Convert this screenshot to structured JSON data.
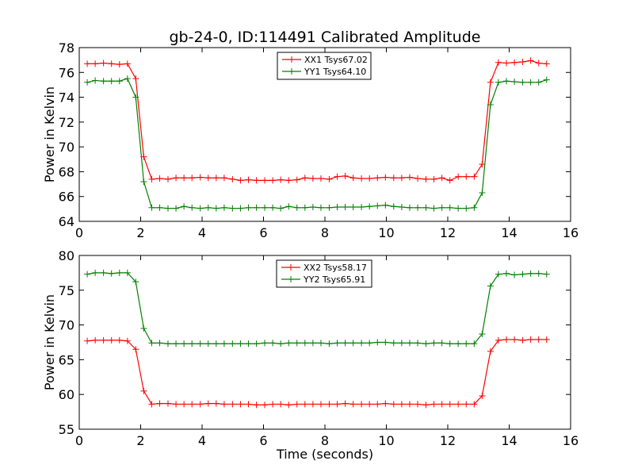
{
  "figure": {
    "title": "gb-24-0, ID:114491 Calibrated Amplitude"
  },
  "chart_data": [
    {
      "type": "line",
      "title": "gb-24-0, ID:114491 Calibrated Amplitude",
      "xlabel": "",
      "ylabel": "Power in Kelvin",
      "xlim": [
        0,
        16
      ],
      "ylim": [
        64,
        78
      ],
      "xticks": [
        "0",
        "2",
        "4",
        "6",
        "8",
        "10",
        "12",
        "14",
        "16"
      ],
      "yticks": [
        "64",
        "66",
        "68",
        "70",
        "72",
        "74",
        "76",
        "78"
      ],
      "grid": false,
      "legend_position": "top-center",
      "x": [
        0.26,
        0.52,
        0.79,
        1.05,
        1.31,
        1.57,
        1.84,
        2.1,
        2.36,
        2.62,
        2.89,
        3.15,
        3.41,
        3.67,
        3.94,
        4.2,
        4.46,
        4.72,
        4.99,
        5.25,
        5.51,
        5.77,
        6.04,
        6.3,
        6.56,
        6.82,
        7.09,
        7.35,
        7.61,
        7.87,
        8.14,
        8.4,
        8.66,
        8.92,
        9.19,
        9.45,
        9.71,
        9.97,
        10.24,
        10.5,
        10.76,
        11.02,
        11.29,
        11.55,
        11.81,
        12.07,
        12.34,
        12.6,
        12.86,
        13.12,
        13.39,
        13.65,
        13.91,
        14.17,
        14.44,
        14.7,
        14.96,
        15.22
      ],
      "series": [
        {
          "name": "XX1 Tsys67.02",
          "color": "#ff0000",
          "values": [
            76.7,
            76.7,
            76.75,
            76.7,
            76.65,
            76.7,
            75.5,
            69.2,
            67.4,
            67.45,
            67.4,
            67.5,
            67.5,
            67.5,
            67.55,
            67.5,
            67.5,
            67.5,
            67.4,
            67.3,
            67.35,
            67.3,
            67.3,
            67.3,
            67.35,
            67.3,
            67.35,
            67.5,
            67.45,
            67.45,
            67.4,
            67.6,
            67.65,
            67.5,
            67.45,
            67.45,
            67.5,
            67.55,
            67.5,
            67.5,
            67.55,
            67.45,
            67.4,
            67.4,
            67.5,
            67.3,
            67.6,
            67.6,
            67.6,
            68.6,
            75.2,
            76.8,
            76.75,
            76.8,
            76.85,
            76.95,
            76.75,
            76.7
          ]
        },
        {
          "name": "YY1 Tsys64.10",
          "color": "#008000",
          "values": [
            75.2,
            75.35,
            75.3,
            75.3,
            75.3,
            75.5,
            74.0,
            67.2,
            65.1,
            65.1,
            65.05,
            65.05,
            65.2,
            65.1,
            65.05,
            65.1,
            65.05,
            65.1,
            65.05,
            65.05,
            65.1,
            65.1,
            65.1,
            65.1,
            65.05,
            65.2,
            65.1,
            65.1,
            65.15,
            65.1,
            65.1,
            65.15,
            65.15,
            65.15,
            65.15,
            65.2,
            65.25,
            65.3,
            65.2,
            65.15,
            65.1,
            65.1,
            65.1,
            65.05,
            65.1,
            65.1,
            65.05,
            65.05,
            65.1,
            66.3,
            73.4,
            75.2,
            75.3,
            75.25,
            75.2,
            75.2,
            75.2,
            75.4
          ]
        }
      ]
    },
    {
      "type": "line",
      "title": "",
      "xlabel": "Time (seconds)",
      "ylabel": "Power in Kelvin",
      "xlim": [
        0,
        16
      ],
      "ylim": [
        55,
        80
      ],
      "xticks": [
        "0",
        "2",
        "4",
        "6",
        "8",
        "10",
        "12",
        "14",
        "16"
      ],
      "yticks": [
        "55",
        "60",
        "65",
        "70",
        "75",
        "80"
      ],
      "grid": false,
      "legend_position": "top-center",
      "x": [
        0.26,
        0.52,
        0.79,
        1.05,
        1.31,
        1.57,
        1.84,
        2.1,
        2.36,
        2.62,
        2.89,
        3.15,
        3.41,
        3.67,
        3.94,
        4.2,
        4.46,
        4.72,
        4.99,
        5.25,
        5.51,
        5.77,
        6.04,
        6.3,
        6.56,
        6.82,
        7.09,
        7.35,
        7.61,
        7.87,
        8.14,
        8.4,
        8.66,
        8.92,
        9.19,
        9.45,
        9.71,
        9.97,
        10.24,
        10.5,
        10.76,
        11.02,
        11.29,
        11.55,
        11.81,
        12.07,
        12.34,
        12.6,
        12.86,
        13.12,
        13.39,
        13.65,
        13.91,
        14.17,
        14.44,
        14.7,
        14.96,
        15.22
      ],
      "series": [
        {
          "name": "XX2 Tsys58.17",
          "color": "#ff0000",
          "values": [
            67.7,
            67.8,
            67.8,
            67.8,
            67.8,
            67.7,
            66.5,
            60.5,
            58.6,
            58.7,
            58.7,
            58.6,
            58.6,
            58.6,
            58.6,
            58.7,
            58.7,
            58.6,
            58.6,
            58.6,
            58.6,
            58.5,
            58.5,
            58.6,
            58.6,
            58.5,
            58.6,
            58.6,
            58.6,
            58.6,
            58.6,
            58.6,
            58.7,
            58.6,
            58.6,
            58.6,
            58.6,
            58.7,
            58.6,
            58.6,
            58.6,
            58.6,
            58.5,
            58.6,
            58.6,
            58.6,
            58.6,
            58.6,
            58.6,
            59.8,
            66.2,
            67.8,
            67.9,
            67.9,
            67.8,
            67.9,
            67.9,
            67.9
          ]
        },
        {
          "name": "YY2 Tsys65.91",
          "color": "#008000",
          "values": [
            77.3,
            77.5,
            77.5,
            77.4,
            77.5,
            77.5,
            76.2,
            69.5,
            67.4,
            67.4,
            67.3,
            67.3,
            67.3,
            67.3,
            67.3,
            67.3,
            67.3,
            67.3,
            67.3,
            67.3,
            67.3,
            67.3,
            67.4,
            67.4,
            67.3,
            67.4,
            67.4,
            67.4,
            67.4,
            67.4,
            67.3,
            67.4,
            67.4,
            67.4,
            67.4,
            67.4,
            67.5,
            67.5,
            67.4,
            67.4,
            67.4,
            67.4,
            67.3,
            67.4,
            67.4,
            67.3,
            67.3,
            67.3,
            67.3,
            68.7,
            75.6,
            77.3,
            77.4,
            77.2,
            77.3,
            77.4,
            77.4,
            77.3
          ]
        }
      ]
    }
  ]
}
